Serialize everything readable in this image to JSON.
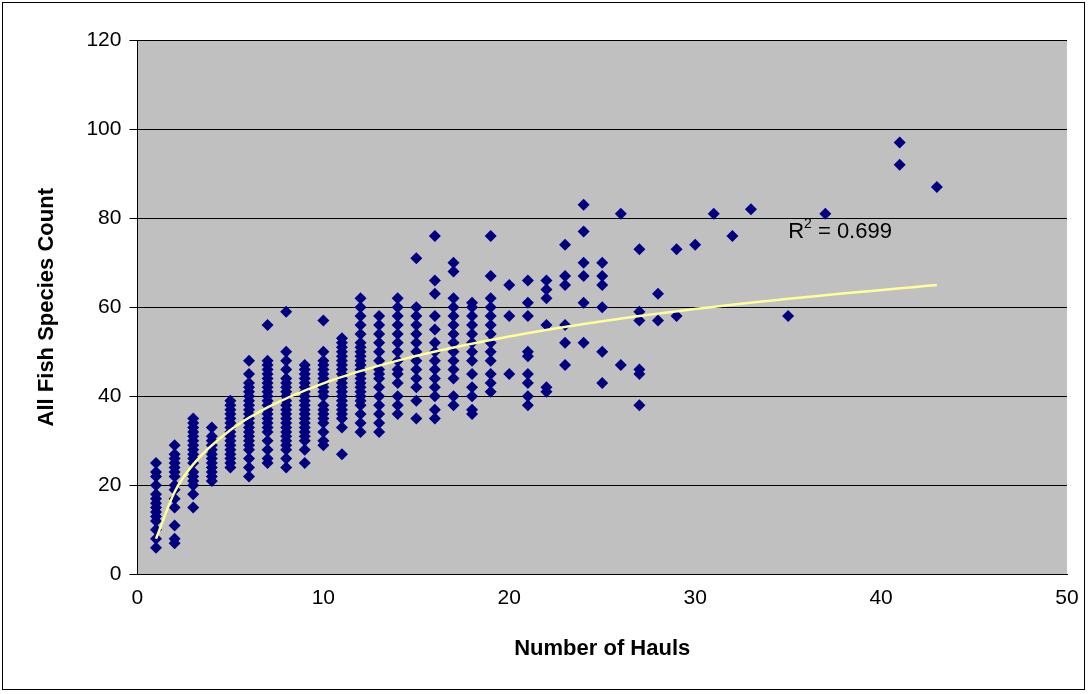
{
  "chart_data": {
    "type": "scatter",
    "xlabel": "Number of Hauls",
    "ylabel": "All Fish Species Count",
    "xlim": [
      0,
      50
    ],
    "xticks": [
      0,
      10,
      20,
      30,
      40,
      50
    ],
    "ylim": [
      0,
      120
    ],
    "yticks": [
      0,
      20,
      40,
      60,
      80,
      100,
      120
    ],
    "grid": "y",
    "legend": false,
    "marker": "diamond",
    "annotations": [
      "R$^{2}$ = 0.699"
    ],
    "series": [
      {
        "color": "#000080",
        "x": [
          1,
          1,
          1,
          1,
          1,
          1,
          1,
          1,
          1,
          1,
          1,
          1,
          1,
          1,
          2,
          2,
          2,
          2,
          2,
          2,
          2,
          2,
          2,
          2,
          2,
          2,
          2,
          2,
          3,
          3,
          3,
          3,
          3,
          3,
          3,
          3,
          3,
          3,
          3,
          3,
          3,
          3,
          3,
          3,
          3,
          4,
          4,
          4,
          4,
          4,
          4,
          4,
          4,
          4,
          4,
          4,
          4,
          5,
          5,
          5,
          5,
          5,
          5,
          5,
          5,
          5,
          5,
          5,
          5,
          5,
          5,
          5,
          5,
          6,
          6,
          6,
          6,
          6,
          6,
          6,
          6,
          6,
          6,
          6,
          6,
          6,
          6,
          6,
          6,
          6,
          6,
          6,
          6,
          6,
          7,
          7,
          7,
          7,
          7,
          7,
          7,
          7,
          7,
          7,
          7,
          7,
          7,
          7,
          7,
          7,
          7,
          7,
          7,
          7,
          7,
          7,
          8,
          8,
          8,
          8,
          8,
          8,
          8,
          8,
          8,
          8,
          8,
          8,
          8,
          8,
          8,
          8,
          8,
          8,
          8,
          8,
          8,
          8,
          8,
          9,
          9,
          9,
          9,
          9,
          9,
          9,
          9,
          9,
          9,
          9,
          9,
          9,
          9,
          9,
          9,
          9,
          9,
          9,
          9,
          10,
          10,
          10,
          10,
          10,
          10,
          10,
          10,
          10,
          10,
          10,
          10,
          10,
          10,
          10,
          10,
          10,
          10,
          10,
          11,
          11,
          11,
          11,
          11,
          11,
          11,
          11,
          11,
          11,
          11,
          11,
          11,
          11,
          11,
          11,
          11,
          11,
          11,
          11,
          11,
          12,
          12,
          12,
          12,
          12,
          12,
          12,
          12,
          12,
          12,
          12,
          12,
          12,
          12,
          12,
          12,
          12,
          12,
          12,
          12,
          12,
          12,
          12,
          13,
          13,
          13,
          13,
          13,
          13,
          13,
          13,
          13,
          13,
          13,
          13,
          13,
          13,
          13,
          14,
          14,
          14,
          14,
          14,
          14,
          14,
          14,
          14,
          14,
          14,
          14,
          14,
          14,
          15,
          15,
          15,
          15,
          15,
          15,
          15,
          15,
          15,
          15,
          15,
          15,
          15,
          16,
          16,
          16,
          16,
          16,
          16,
          16,
          16,
          16,
          16,
          16,
          16,
          16,
          16,
          17,
          17,
          17,
          17,
          17,
          17,
          17,
          17,
          17,
          17,
          17,
          17,
          17,
          17,
          18,
          18,
          18,
          18,
          18,
          18,
          18,
          18,
          18,
          18,
          18,
          18,
          18,
          19,
          19,
          19,
          19,
          19,
          19,
          19,
          19,
          19,
          19,
          19,
          19,
          19,
          20,
          20,
          20,
          21,
          21,
          21,
          21,
          21,
          21,
          21,
          21,
          21,
          22,
          22,
          22,
          22,
          22,
          22,
          23,
          23,
          23,
          23,
          23,
          23,
          24,
          24,
          24,
          24,
          24,
          24,
          25,
          25,
          25,
          25,
          25,
          25,
          26,
          26,
          27,
          27,
          27,
          27,
          27,
          27,
          28,
          28,
          29,
          29,
          30,
          31,
          32,
          33,
          35,
          37,
          41,
          41,
          43
        ],
        "values": [
          6,
          8,
          10,
          12,
          13,
          14,
          15,
          16,
          17,
          18,
          20,
          22,
          23,
          25,
          7,
          8,
          11,
          15,
          17,
          19,
          20,
          22,
          23,
          24,
          25,
          26,
          27,
          29,
          15,
          18,
          20,
          21,
          22,
          23,
          25,
          26,
          27,
          28,
          29,
          30,
          31,
          32,
          33,
          34,
          35,
          21,
          22,
          23,
          24,
          25,
          26,
          27,
          28,
          29,
          30,
          31,
          33,
          24,
          25,
          26,
          27,
          28,
          29,
          30,
          31,
          32,
          33,
          34,
          35,
          36,
          37,
          38,
          39,
          22,
          24,
          26,
          28,
          29,
          30,
          31,
          32,
          33,
          34,
          35,
          36,
          37,
          38,
          39,
          40,
          41,
          42,
          43,
          45,
          48,
          25,
          26,
          28,
          30,
          32,
          33,
          34,
          35,
          36,
          37,
          38,
          39,
          40,
          41,
          42,
          43,
          44,
          45,
          46,
          47,
          48,
          56,
          24,
          26,
          28,
          29,
          30,
          31,
          32,
          33,
          34,
          35,
          36,
          37,
          38,
          39,
          40,
          41,
          42,
          43,
          44,
          46,
          48,
          50,
          59,
          25,
          28,
          30,
          31,
          32,
          33,
          34,
          35,
          36,
          37,
          38,
          39,
          40,
          41,
          42,
          43,
          44,
          45,
          46,
          47,
          29,
          30,
          32,
          34,
          35,
          36,
          37,
          38,
          40,
          41,
          42,
          43,
          44,
          45,
          46,
          47,
          48,
          50,
          57,
          27,
          33,
          35,
          36,
          37,
          38,
          39,
          40,
          41,
          42,
          43,
          44,
          45,
          46,
          47,
          48,
          49,
          50,
          51,
          52,
          53,
          32,
          34,
          36,
          38,
          39,
          40,
          41,
          42,
          43,
          44,
          45,
          46,
          47,
          48,
          49,
          50,
          51,
          52,
          54,
          56,
          58,
          60,
          62,
          32,
          34,
          36,
          38,
          40,
          42,
          44,
          45,
          46,
          48,
          50,
          52,
          54,
          56,
          58,
          36,
          38,
          40,
          43,
          45,
          46,
          48,
          50,
          52,
          54,
          56,
          58,
          60,
          62,
          35,
          39,
          42,
          44,
          46,
          48,
          50,
          52,
          54,
          56,
          58,
          60,
          71,
          35,
          37,
          40,
          42,
          44,
          46,
          48,
          50,
          52,
          55,
          58,
          63,
          66,
          76,
          38,
          40,
          44,
          46,
          48,
          50,
          52,
          54,
          56,
          58,
          60,
          62,
          68,
          70,
          36,
          37,
          40,
          42,
          45,
          48,
          50,
          52,
          54,
          56,
          58,
          60,
          61,
          41,
          43,
          45,
          48,
          50,
          52,
          54,
          56,
          58,
          60,
          62,
          67,
          76,
          65,
          58,
          45,
          66,
          61,
          58,
          50,
          49,
          45,
          43,
          40,
          38,
          66,
          64,
          62,
          56,
          42,
          41,
          74,
          67,
          65,
          56,
          52,
          47,
          83,
          77,
          70,
          67,
          61,
          52,
          70,
          67,
          65,
          60,
          50,
          43,
          81,
          47,
          73,
          59,
          57,
          46,
          45,
          38,
          63,
          57,
          73,
          58,
          74,
          81,
          76,
          82,
          58,
          81,
          97,
          92,
          87
        ]
      },
      {
        "type": "line",
        "color": "#ffff99",
        "marker": "none",
        "x": [
          1,
          2,
          3,
          5,
          7,
          10,
          14,
          20,
          27,
          35,
          43
        ],
        "values": [
          8,
          18.5,
          24.7,
          32.4,
          37.5,
          42.9,
          48,
          53.4,
          58,
          61.9,
          65
        ]
      }
    ]
  }
}
